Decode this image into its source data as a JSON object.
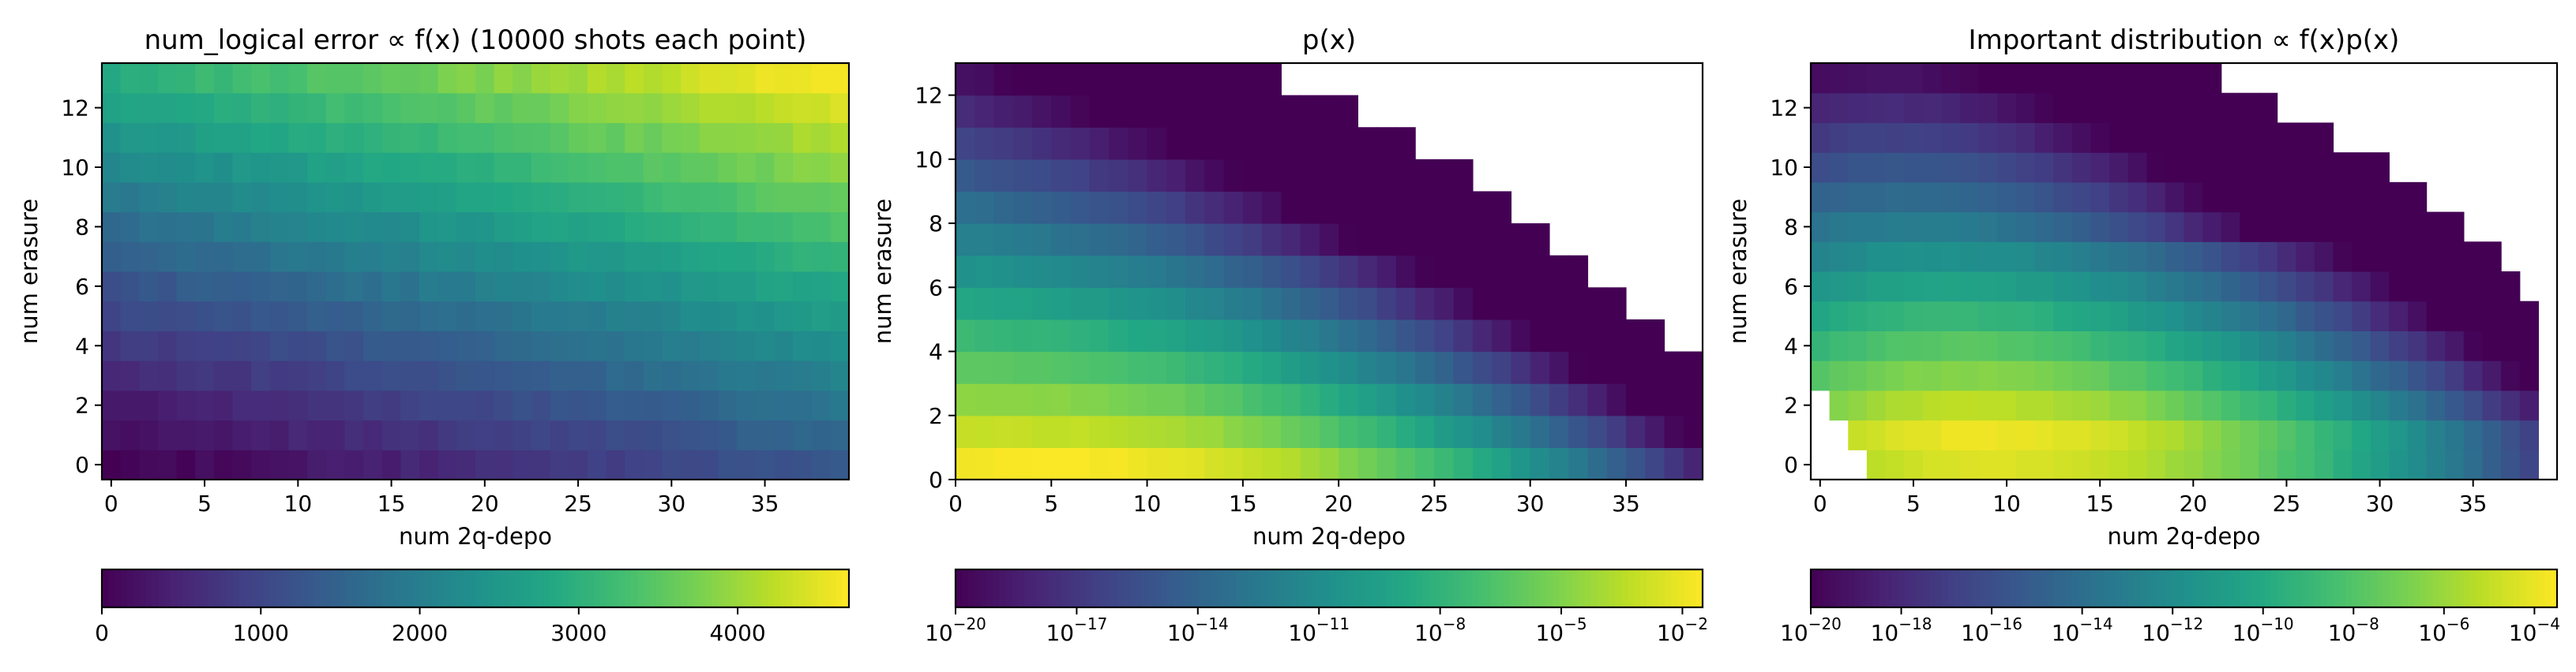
{
  "chart_data": [
    {
      "type": "heatmap",
      "title": "num_logical error ∝ f(x) (10000 shots each point)",
      "xlabel": "num 2q-depo",
      "ylabel": "num erasure",
      "x_cells": 40,
      "y_cells": 14,
      "xlim": [
        -0.5,
        39.5
      ],
      "ylim": [
        -0.5,
        13.5
      ],
      "xticks": [
        0,
        5,
        10,
        15,
        20,
        25,
        30,
        35
      ],
      "yticks": [
        0,
        2,
        4,
        6,
        8,
        10,
        12
      ],
      "colorbar": {
        "scale": "linear",
        "min": 0,
        "max": 4700,
        "ticks": [
          "0",
          "1000",
          "2000",
          "3000",
          "4000"
        ]
      },
      "value_model": "approx f(x,y) = 4700 * (0.34*x/39 + 0.66*y/13) ^ 1.15; min 0 at (0,0), max about 4700 at (39,13)",
      "colormap": "viridis"
    },
    {
      "type": "heatmap",
      "title": "p(x)",
      "xlabel": "num 2q-depo",
      "ylabel": "num erasure",
      "x_cells": 39,
      "y_cells": 13,
      "xlim": [
        0,
        39
      ],
      "ylim": [
        0,
        13
      ],
      "xticks": [
        0,
        5,
        10,
        15,
        20,
        25,
        30,
        35
      ],
      "yticks": [
        0,
        2,
        4,
        6,
        8,
        10,
        12
      ],
      "colorbar": {
        "scale": "log",
        "min_exp": -20,
        "max_exp": -1.5,
        "ticks": [
          "-20",
          "-17",
          "-14",
          "-11",
          "-8",
          "-5",
          "-2"
        ]
      },
      "valid_region_max_x_per_row": [
        39,
        39,
        39,
        39,
        37,
        35,
        33,
        31,
        29,
        27,
        24,
        21,
        17
      ],
      "peak": {
        "x": 8,
        "y": 0,
        "log10_value": -1.5
      },
      "colormap": "viridis"
    },
    {
      "type": "heatmap",
      "title": "Important distribution ∝ f(x)p(x)",
      "xlabel": "num 2q-depo",
      "ylabel": "num erasure",
      "x_cells": 40,
      "y_cells": 14,
      "xlim": [
        -0.5,
        39.5
      ],
      "ylim": [
        -0.5,
        13.5
      ],
      "xticks": [
        0,
        5,
        10,
        15,
        20,
        25,
        30,
        35
      ],
      "yticks": [
        0,
        2,
        4,
        6,
        8,
        10,
        12
      ],
      "colorbar": {
        "scale": "log",
        "min_exp": -20,
        "max_exp": -3.5,
        "ticks": [
          "-20",
          "-18",
          "-16",
          "-14",
          "-12",
          "-10",
          "-8",
          "-6",
          "-4"
        ]
      },
      "valid_region_max_x_per_row": [
        39,
        39,
        39,
        39,
        39,
        39,
        38,
        37,
        35,
        33,
        31,
        28,
        25,
        22
      ],
      "valid_region_min_x_per_row": [
        3,
        2,
        1,
        0,
        0,
        0,
        0,
        0,
        0,
        0,
        0,
        0,
        0,
        0
      ],
      "peak": {
        "x": 10,
        "y": 1,
        "log10_value": -3.5
      },
      "colormap": "viridis"
    }
  ]
}
